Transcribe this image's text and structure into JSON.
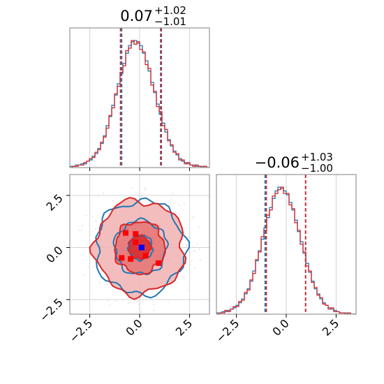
{
  "chart_data": [
    {
      "type": "histogram",
      "panel": "x1-marginal",
      "title": {
        "median": "0.07",
        "upper": "+1.02",
        "lower": "−1.01"
      },
      "xlim": [
        -3.5,
        3.5
      ],
      "grid": true,
      "series": [
        {
          "color": "#1f77b4",
          "bins_start": -3.5,
          "bin_width": 0.14,
          "density": [
            0.01,
            0.01,
            0.02,
            0.02,
            0.03,
            0.03,
            0.05,
            0.06,
            0.09,
            0.11,
            0.15,
            0.19,
            0.25,
            0.33,
            0.4,
            0.49,
            0.57,
            0.66,
            0.74,
            0.82,
            0.9,
            0.96,
            0.99,
            1.0,
            0.98,
            0.96,
            0.9,
            0.84,
            0.76,
            0.67,
            0.59,
            0.5,
            0.42,
            0.35,
            0.28,
            0.22,
            0.17,
            0.13,
            0.1,
            0.07,
            0.05,
            0.04,
            0.03,
            0.02,
            0.02,
            0.01,
            0.01,
            0.01,
            0.0,
            0.0
          ]
        },
        {
          "color": "#d62728",
          "bins_start": -3.5,
          "bin_width": 0.14,
          "density": [
            0.0,
            0.01,
            0.01,
            0.02,
            0.02,
            0.04,
            0.05,
            0.07,
            0.08,
            0.12,
            0.14,
            0.2,
            0.24,
            0.31,
            0.41,
            0.47,
            0.58,
            0.64,
            0.75,
            0.8,
            0.92,
            0.94,
            1.0,
            0.97,
            0.99,
            0.93,
            0.91,
            0.81,
            0.78,
            0.65,
            0.6,
            0.48,
            0.44,
            0.33,
            0.3,
            0.21,
            0.18,
            0.12,
            0.11,
            0.06,
            0.06,
            0.03,
            0.04,
            0.02,
            0.01,
            0.02,
            0.01,
            0.0,
            0.01,
            0.0
          ]
        }
      ],
      "quantile_lines": [
        {
          "color": "#1f77b4",
          "values": [
            -0.9,
            1.05
          ]
        },
        {
          "color": "#d62728",
          "values": [
            -0.96,
            1.09
          ]
        }
      ]
    },
    {
      "type": "histogram",
      "panel": "x2-marginal",
      "title": {
        "median": "−0.06",
        "upper": "+1.03",
        "lower": "−1.00"
      },
      "xlim": [
        -3.5,
        3.5
      ],
      "xticks": [
        "−2.5",
        "0.0",
        "2.5"
      ],
      "grid": true,
      "series": [
        {
          "color": "#1f77b4",
          "bins_start": -3.5,
          "bin_width": 0.14,
          "density": [
            0.01,
            0.01,
            0.02,
            0.02,
            0.03,
            0.04,
            0.05,
            0.07,
            0.09,
            0.12,
            0.16,
            0.2,
            0.26,
            0.34,
            0.42,
            0.5,
            0.59,
            0.68,
            0.76,
            0.84,
            0.91,
            0.97,
            1.0,
            0.99,
            0.97,
            0.94,
            0.88,
            0.82,
            0.74,
            0.65,
            0.57,
            0.48,
            0.4,
            0.33,
            0.26,
            0.2,
            0.16,
            0.12,
            0.09,
            0.07,
            0.05,
            0.04,
            0.03,
            0.02,
            0.01,
            0.01,
            0.01,
            0.0,
            0.0,
            0.0
          ]
        },
        {
          "color": "#d62728",
          "bins_start": -3.5,
          "bin_width": 0.14,
          "density": [
            0.0,
            0.01,
            0.01,
            0.03,
            0.02,
            0.04,
            0.06,
            0.06,
            0.1,
            0.11,
            0.17,
            0.19,
            0.27,
            0.32,
            0.43,
            0.49,
            0.61,
            0.66,
            0.78,
            0.82,
            0.93,
            0.95,
            0.98,
            1.0,
            0.95,
            0.95,
            0.86,
            0.83,
            0.72,
            0.66,
            0.55,
            0.49,
            0.38,
            0.34,
            0.25,
            0.21,
            0.15,
            0.13,
            0.08,
            0.07,
            0.04,
            0.05,
            0.02,
            0.02,
            0.01,
            0.01,
            0.0,
            0.01,
            0.0,
            0.0
          ]
        }
      ],
      "quantile_lines": [
        {
          "color": "#1f77b4",
          "values": [
            -1.06,
            0.97
          ]
        },
        {
          "color": "#d62728",
          "values": [
            -1.0,
            0.97
          ]
        }
      ]
    },
    {
      "type": "contour",
      "panel": "x1-vs-x2",
      "xlim": [
        -3.5,
        3.5
      ],
      "ylim": [
        -3.2,
        3.5
      ],
      "xticks": [
        "−2.5",
        "0.0",
        "2.5"
      ],
      "yticks": [
        "−2.5",
        "0.0",
        "2.5"
      ],
      "grid": true,
      "series": [
        {
          "color": "#1f77b4",
          "contour_radii": [
            0.6,
            1.3,
            2.25
          ],
          "filled": false
        },
        {
          "color": "#d62728",
          "contour_radii": [
            0.55,
            1.25,
            2.25
          ],
          "filled": true
        }
      ],
      "center_marker": {
        "color": "#0000ff",
        "x": 0.1,
        "y": 0.0
      },
      "points": [
        {
          "color": "#ff0000",
          "x": -0.7,
          "y": 0.7
        },
        {
          "color": "#ff0000",
          "x": -0.2,
          "y": 0.65
        },
        {
          "color": "#ff0000",
          "x": -0.2,
          "y": 0.25
        },
        {
          "color": "#ff0000",
          "x": -0.9,
          "y": -0.5
        },
        {
          "color": "#ff0000",
          "x": -0.45,
          "y": -0.55
        },
        {
          "color": "#ff0000",
          "x": 0.3,
          "y": -0.4
        },
        {
          "color": "#ff0000",
          "x": 0.95,
          "y": -0.75
        }
      ]
    }
  ]
}
